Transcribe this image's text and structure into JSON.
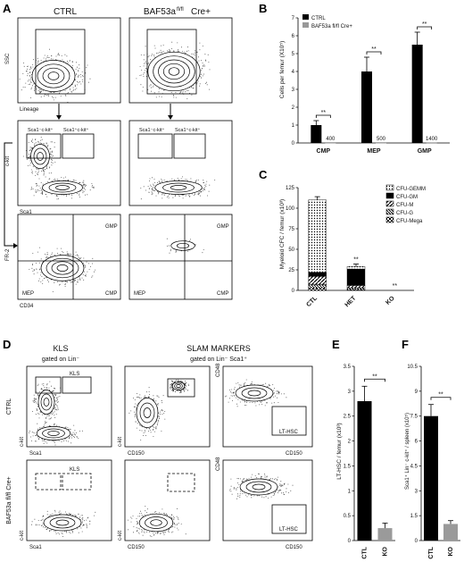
{
  "panels": {
    "A": {
      "letter": "A",
      "col_titles": [
        "CTRL",
        "BAF53a"
      ],
      "col2_superscript": "fl/fl",
      "col2_suffix": "Cre+",
      "row1_y": "SSC",
      "row1_x": "Lineage",
      "gate_left": "Sca1⁻c-kit⁺",
      "gate_right": "Sca1⁺c-kit⁺",
      "row2_y": "c-kit",
      "row2_x": "Sca1",
      "row3_y": "FR-2",
      "row3_x": "CD34",
      "q_gmp": "GMP",
      "q_mep": "MEP",
      "q_cmp": "CMP"
    },
    "B": {
      "letter": "B",
      "legend": [
        "CTRL",
        "BAF53a fl/fl Cre+"
      ],
      "ylabel": "Cells per femur (X10⁵)",
      "sig": "**"
    },
    "C": {
      "letter": "C",
      "ylabel": "Myeloid CFC / femur (x10³)",
      "legend": [
        "CFU-GEMM",
        "CFU-GM",
        "CFU-M",
        "CFU-G",
        "CFU-Mega"
      ],
      "sig": "**"
    },
    "D": {
      "letter": "D",
      "kls_title": "KLS",
      "kls_sub": "gated on Lin⁻",
      "slam_title": "SLAM MARKERS",
      "slam_sub": "gated on Lin⁻ Sca1⁺",
      "row1": "CTRL",
      "row2": "BAF53a fl/fl Cre+",
      "gate_kls": "KLS",
      "gate_lt": "LT-HSC",
      "x1": "Sca1",
      "x2": "CD150",
      "y1": "c-kit",
      "y3": "CD48"
    },
    "E": {
      "letter": "E",
      "ylabel": "LT-HSC / femur (x10³)",
      "sig": "**"
    },
    "F": {
      "letter": "F",
      "ylabel": "Sca1⁺ Lin⁻ c-kit⁺ / spleen (x10⁵)",
      "sig": "**"
    }
  },
  "chart_data": [
    {
      "panel": "B",
      "type": "bar",
      "categories": [
        "CMP",
        "MEP",
        "GMP"
      ],
      "series": [
        {
          "name": "CTRL",
          "values": [
            1.0,
            4.0,
            5.5
          ],
          "errors": [
            0.25,
            0.8,
            0.7
          ],
          "color": "#000000"
        },
        {
          "name": "BAF53a fl/fl Cre+",
          "values": [
            0.004,
            0.005,
            0.014
          ],
          "color": "#999999"
        }
      ],
      "bar_labels": [
        "400",
        "500",
        "1400"
      ],
      "ylabel": "Cells per femur (X10⁵)",
      "ylim": [
        0,
        7
      ],
      "yticks": [
        0,
        1,
        2,
        3,
        4,
        5,
        6,
        7
      ],
      "legend_position": "top-left"
    },
    {
      "panel": "C",
      "type": "bar",
      "stacked": true,
      "categories": [
        "CTL",
        "HET",
        "KO"
      ],
      "series": [
        {
          "name": "CFU-Mega",
          "values": [
            3,
            1,
            0
          ]
        },
        {
          "name": "CFU-G",
          "values": [
            4,
            2,
            0
          ]
        },
        {
          "name": "CFU-M",
          "values": [
            10,
            3,
            0
          ]
        },
        {
          "name": "CFU-GM",
          "values": [
            5,
            20,
            0
          ]
        },
        {
          "name": "CFU-GEMM",
          "values": [
            88,
            3,
            0
          ]
        }
      ],
      "totals": [
        110,
        29,
        0
      ],
      "errors": [
        4,
        3,
        0
      ],
      "significance": [
        "",
        "**",
        "**"
      ],
      "ylabel": "Myeloid CFC / femur (x10³)",
      "ylim": [
        0,
        125
      ],
      "yticks": [
        0,
        25,
        50,
        75,
        100,
        125
      ],
      "legend_position": "top-right"
    },
    {
      "panel": "E",
      "type": "bar",
      "categories": [
        "CTL",
        "KO"
      ],
      "values": [
        2.8,
        0.25
      ],
      "errors": [
        0.3,
        0.1
      ],
      "colors": [
        "#000000",
        "#9a9a9a"
      ],
      "ylabel": "LT-HSC / femur (x10³)",
      "ylim": [
        0,
        3.5
      ],
      "yticks": [
        0,
        0.5,
        1.0,
        1.5,
        2.0,
        2.5,
        3.0,
        3.5
      ]
    },
    {
      "panel": "F",
      "type": "bar",
      "categories": [
        "CTL",
        "KO"
      ],
      "values": [
        7.5,
        1.0
      ],
      "errors": [
        0.7,
        0.2
      ],
      "colors": [
        "#000000",
        "#9a9a9a"
      ],
      "ylabel": "Sca1⁺ Lin⁻ c-kit⁺ / spleen (x10⁵)",
      "ylim": [
        0,
        10.5
      ],
      "yticks": [
        0,
        1.5,
        3.0,
        4.5,
        6.0,
        7.5,
        9.0,
        10.5
      ]
    }
  ]
}
